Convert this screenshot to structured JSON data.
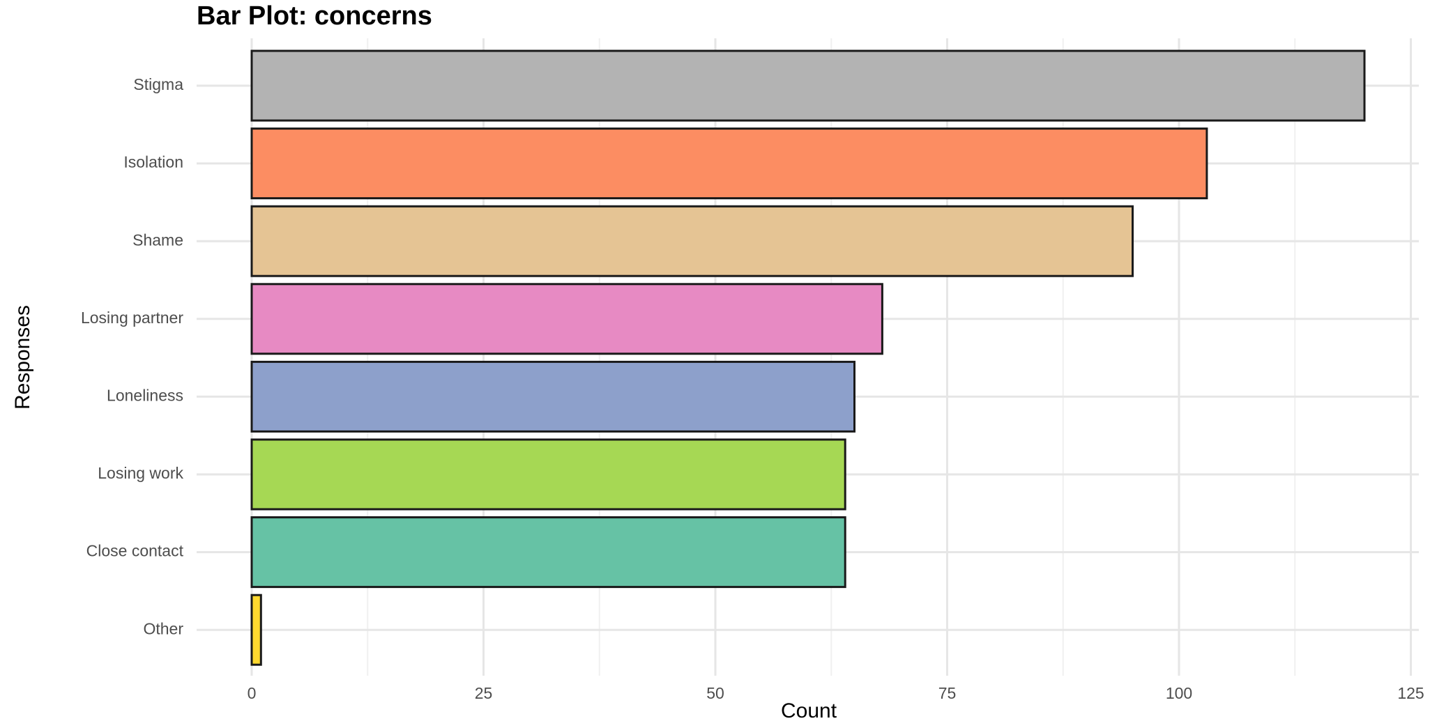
{
  "chart_data": {
    "type": "bar",
    "orientation": "horizontal",
    "title": "Bar Plot: concerns",
    "xlabel": "Count",
    "ylabel": "Responses",
    "categories": [
      "Stigma",
      "Isolation",
      "Shame",
      "Losing partner",
      "Loneliness",
      "Losing work",
      "Close contact",
      "Other"
    ],
    "values": [
      120,
      103,
      95,
      68,
      65,
      64,
      64,
      1
    ],
    "colors": [
      "#b3b3b3",
      "#fc8d62",
      "#e5c494",
      "#e78ac3",
      "#8da0cb",
      "#a6d854",
      "#66c2a5",
      "#ffd92f"
    ],
    "xticks": [
      "0",
      "25",
      "50",
      "75",
      "100",
      "125"
    ],
    "xlim": [
      -6,
      126
    ],
    "grid": true,
    "legend": "none"
  }
}
